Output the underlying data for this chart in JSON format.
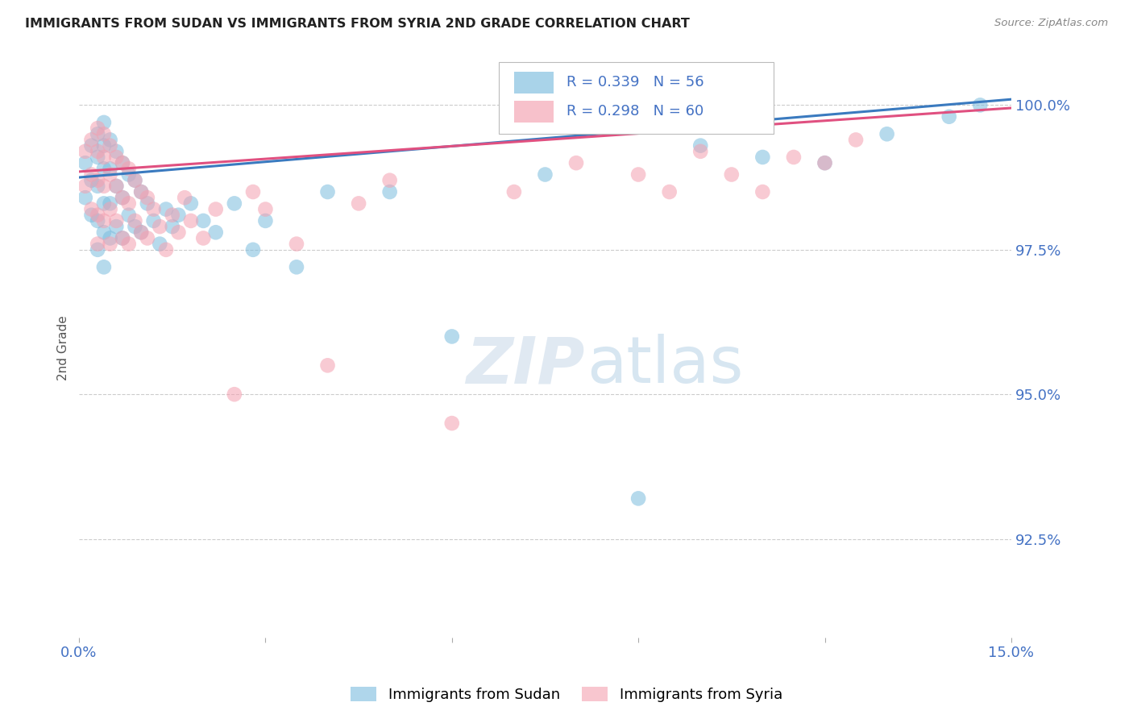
{
  "title": "IMMIGRANTS FROM SUDAN VS IMMIGRANTS FROM SYRIA 2ND GRADE CORRELATION CHART",
  "source": "Source: ZipAtlas.com",
  "ylabel": "2nd Grade",
  "ylabel_right_ticks": [
    "100.0%",
    "97.5%",
    "95.0%",
    "92.5%"
  ],
  "ylabel_right_vals": [
    1.0,
    0.975,
    0.95,
    0.925
  ],
  "xlim": [
    0.0,
    0.15
  ],
  "ylim": [
    0.908,
    1.008
  ],
  "sudan_R": 0.339,
  "sudan_N": 56,
  "syria_R": 0.298,
  "syria_N": 60,
  "sudan_color": "#7bbcde",
  "syria_color": "#f4a0b0",
  "sudan_line_color": "#3a7abf",
  "syria_line_color": "#e05080",
  "legend_sudan": "Immigrants from Sudan",
  "legend_syria": "Immigrants from Syria",
  "watermark_zip": "ZIP",
  "watermark_atlas": "atlas",
  "background_color": "#ffffff",
  "grid_color": "#cccccc",
  "title_color": "#222222",
  "axis_label_color": "#4472c4",
  "sudan_x": [
    0.001,
    0.001,
    0.002,
    0.002,
    0.002,
    0.003,
    0.003,
    0.003,
    0.003,
    0.003,
    0.004,
    0.004,
    0.004,
    0.004,
    0.004,
    0.004,
    0.005,
    0.005,
    0.005,
    0.005,
    0.006,
    0.006,
    0.006,
    0.007,
    0.007,
    0.007,
    0.008,
    0.008,
    0.009,
    0.009,
    0.01,
    0.01,
    0.011,
    0.012,
    0.013,
    0.014,
    0.015,
    0.016,
    0.018,
    0.02,
    0.022,
    0.025,
    0.028,
    0.03,
    0.035,
    0.04,
    0.05,
    0.06,
    0.075,
    0.09,
    0.1,
    0.11,
    0.12,
    0.13,
    0.14,
    0.145
  ],
  "sudan_y": [
    0.99,
    0.984,
    0.993,
    0.987,
    0.981,
    0.995,
    0.991,
    0.986,
    0.98,
    0.975,
    0.997,
    0.993,
    0.989,
    0.983,
    0.978,
    0.972,
    0.994,
    0.989,
    0.983,
    0.977,
    0.992,
    0.986,
    0.979,
    0.99,
    0.984,
    0.977,
    0.988,
    0.981,
    0.987,
    0.979,
    0.985,
    0.978,
    0.983,
    0.98,
    0.976,
    0.982,
    0.979,
    0.981,
    0.983,
    0.98,
    0.978,
    0.983,
    0.975,
    0.98,
    0.972,
    0.985,
    0.985,
    0.96,
    0.988,
    0.932,
    0.993,
    0.991,
    0.99,
    0.995,
    0.998,
    1.0
  ],
  "syria_x": [
    0.001,
    0.001,
    0.002,
    0.002,
    0.002,
    0.003,
    0.003,
    0.003,
    0.003,
    0.003,
    0.004,
    0.004,
    0.004,
    0.004,
    0.005,
    0.005,
    0.005,
    0.005,
    0.006,
    0.006,
    0.006,
    0.007,
    0.007,
    0.007,
    0.008,
    0.008,
    0.008,
    0.009,
    0.009,
    0.01,
    0.01,
    0.011,
    0.011,
    0.012,
    0.013,
    0.014,
    0.015,
    0.016,
    0.017,
    0.018,
    0.02,
    0.022,
    0.025,
    0.028,
    0.03,
    0.035,
    0.04,
    0.045,
    0.05,
    0.06,
    0.07,
    0.08,
    0.09,
    0.095,
    0.1,
    0.105,
    0.11,
    0.115,
    0.12,
    0.125
  ],
  "syria_y": [
    0.992,
    0.986,
    0.994,
    0.988,
    0.982,
    0.996,
    0.992,
    0.987,
    0.981,
    0.976,
    0.995,
    0.991,
    0.986,
    0.98,
    0.993,
    0.988,
    0.982,
    0.976,
    0.991,
    0.986,
    0.98,
    0.99,
    0.984,
    0.977,
    0.989,
    0.983,
    0.976,
    0.987,
    0.98,
    0.985,
    0.978,
    0.984,
    0.977,
    0.982,
    0.979,
    0.975,
    0.981,
    0.978,
    0.984,
    0.98,
    0.977,
    0.982,
    0.95,
    0.985,
    0.982,
    0.976,
    0.955,
    0.983,
    0.987,
    0.945,
    0.985,
    0.99,
    0.988,
    0.985,
    0.992,
    0.988,
    0.985,
    0.991,
    0.99,
    0.994
  ]
}
